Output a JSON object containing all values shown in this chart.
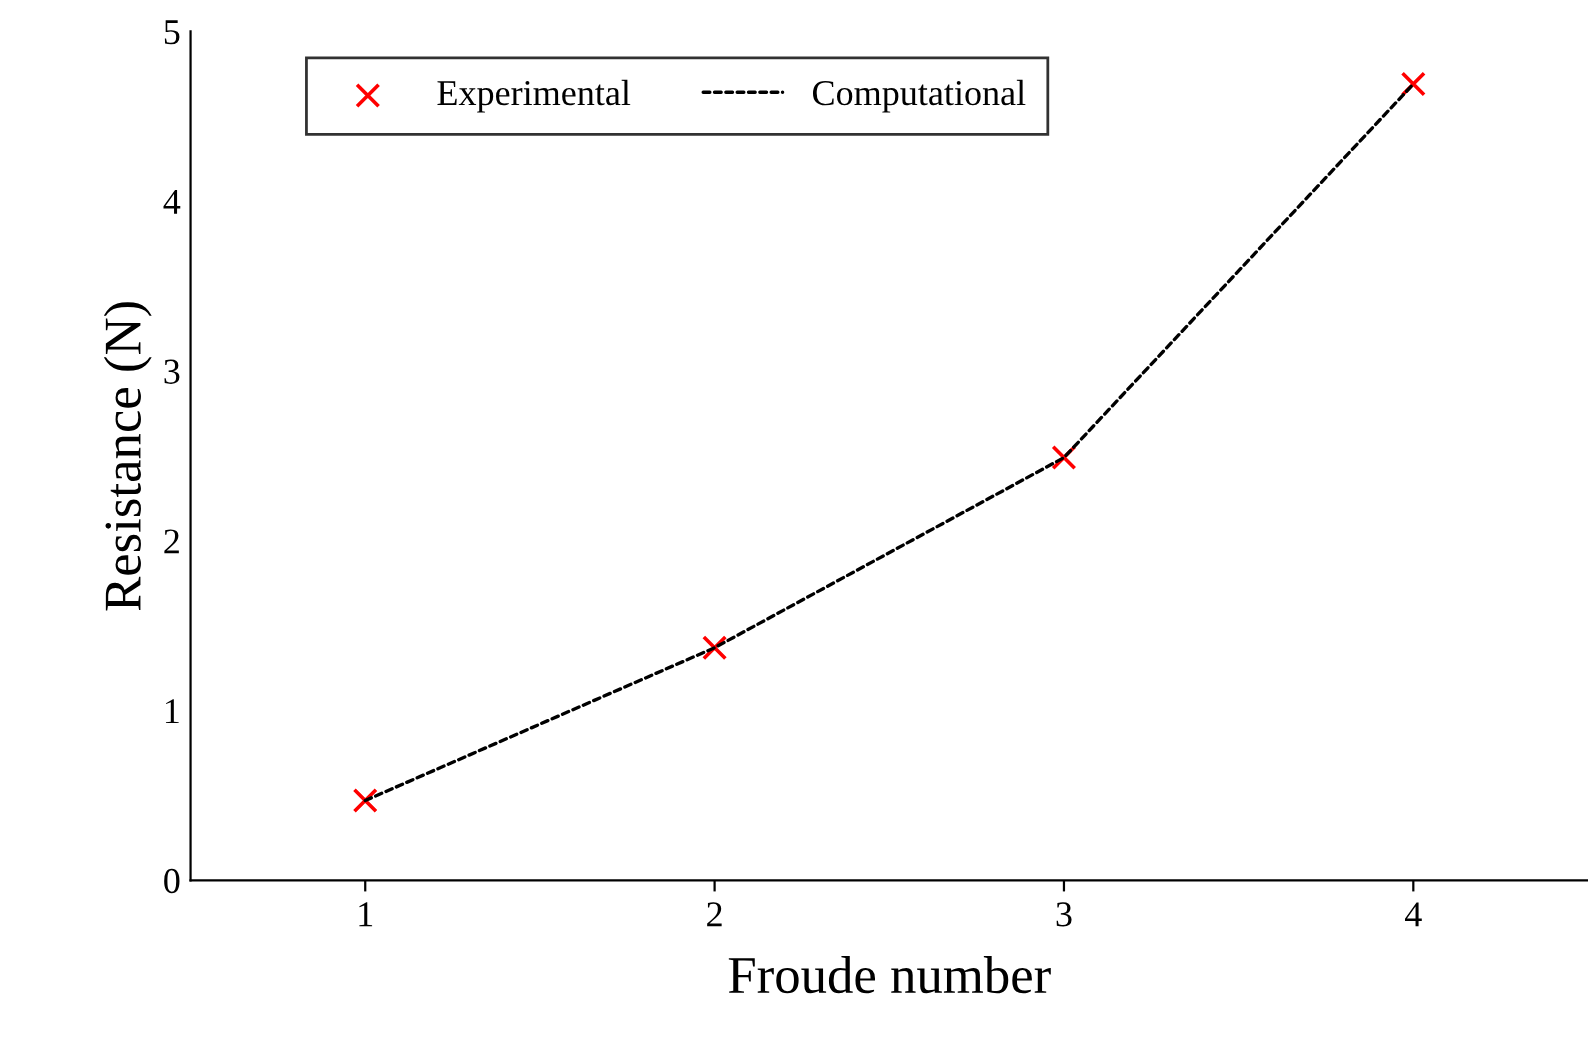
{
  "chart_data": {
    "type": "line",
    "xlabel": "Froude number",
    "ylabel": "Resistance (N)",
    "categories": [
      "1",
      "2",
      "3",
      "4"
    ],
    "series": [
      {
        "name": "Experimental",
        "type": "scatter",
        "color": "#ff0000",
        "marker": "cross",
        "values": [
          0.47,
          1.37,
          2.49,
          4.69
        ]
      },
      {
        "name": "Computational",
        "color": "#000000",
        "line_style": "dashed",
        "marker": "none",
        "values": [
          0.47,
          1.37,
          2.49,
          4.69
        ]
      }
    ],
    "ylim": [
      0,
      5
    ],
    "yticks": [
      0,
      1,
      2,
      3,
      4,
      5
    ],
    "grid": false,
    "legend": "top left"
  }
}
